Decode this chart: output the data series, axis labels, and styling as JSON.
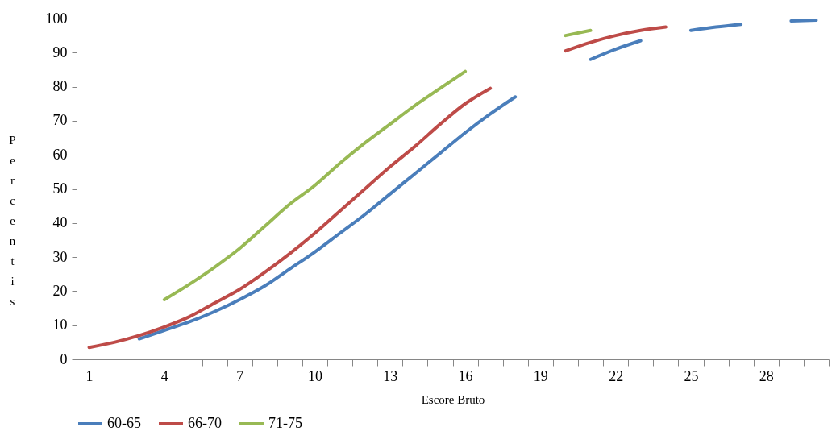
{
  "chart_data": {
    "type": "line",
    "xlabel": "Escore Bruto",
    "ylabel": "Percentis",
    "categories": [
      "1",
      null,
      null,
      "4",
      null,
      null,
      "7",
      null,
      null,
      "10",
      null,
      null,
      "13",
      null,
      null,
      "16",
      null,
      null,
      "19",
      null,
      null,
      "22",
      null,
      null,
      "25",
      null,
      null,
      "28",
      null,
      null
    ],
    "series": [
      {
        "name": "60-65",
        "color": "#4a7ebb",
        "values": [
          null,
          null,
          6,
          8.5,
          11,
          14,
          17.5,
          21.5,
          26.5,
          31.5,
          37,
          42.5,
          48.5,
          54.5,
          60.5,
          66.5,
          72,
          77,
          null,
          null,
          88,
          91,
          93.5,
          null,
          96.5,
          97.5,
          98.3,
          null,
          99.3,
          99.5
        ]
      },
      {
        "name": "66-70",
        "color": "#be4b48",
        "values": [
          3.5,
          5,
          7,
          9.5,
          12.5,
          16.5,
          20.5,
          25.5,
          31,
          37,
          43.5,
          50,
          56.5,
          62.5,
          69,
          75,
          79.5,
          null,
          null,
          90.5,
          93,
          95,
          96.5,
          97.5,
          null,
          null,
          null,
          null,
          null,
          null
        ]
      },
      {
        "name": "71-75",
        "color": "#98b954",
        "values": [
          null,
          null,
          null,
          17.5,
          22,
          27,
          32.5,
          39,
          45.5,
          51,
          57.5,
          63.5,
          69,
          74.5,
          79.5,
          84.5,
          null,
          null,
          null,
          95,
          96.5,
          null,
          null,
          null,
          null,
          null,
          null,
          null,
          null,
          null
        ]
      }
    ],
    "ylim": [
      0,
      100
    ],
    "yticks": [
      0,
      10,
      20,
      30,
      40,
      50,
      60,
      70,
      80,
      90,
      100
    ],
    "grid": false,
    "legend": "bottom",
    "marker": "none",
    "line_style": "solid"
  }
}
